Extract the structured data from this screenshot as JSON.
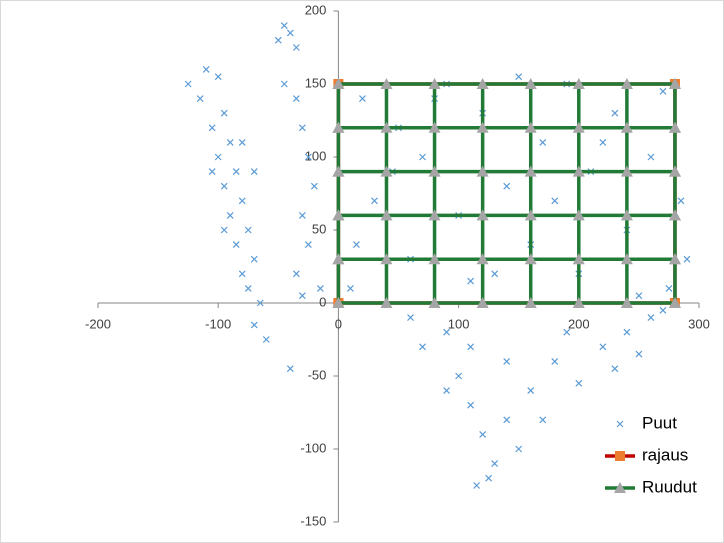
{
  "chart_data": {
    "type": "scatter",
    "xlim": [
      -200,
      300
    ],
    "xticks": [
      -200,
      -100,
      0,
      100,
      200,
      300
    ],
    "ylim": [
      -150,
      200
    ],
    "yticks": [
      -150,
      -100,
      -50,
      0,
      50,
      100,
      150,
      200
    ],
    "legend": "bottom-right",
    "series": [
      {
        "name": "Puut",
        "type": "scatter",
        "color": "#5b9bd5",
        "marker": "x",
        "x": [
          -125,
          -115,
          -110,
          -100,
          -95,
          -105,
          -90,
          -100,
          -85,
          -95,
          -80,
          -90,
          -75,
          -85,
          -70,
          -80,
          -75,
          -65,
          -70,
          -60,
          -95,
          -105,
          -70,
          -80,
          -50,
          -40,
          -35,
          -45,
          -45,
          -35,
          -30,
          -25,
          -20,
          -30,
          -25,
          -35,
          -30,
          -15,
          -40,
          10,
          20,
          30,
          50,
          60,
          70,
          90,
          100,
          110,
          120,
          140,
          150,
          160,
          170,
          190,
          200,
          210,
          230,
          240,
          250,
          260,
          270,
          285,
          290,
          15,
          45,
          80,
          130,
          180,
          220,
          275,
          60,
          70,
          90,
          100,
          110,
          120,
          130,
          115,
          125,
          140,
          150,
          160,
          180,
          200,
          220,
          240,
          260,
          270,
          190,
          170,
          90,
          140,
          110,
          230,
          250
        ],
        "y": [
          150,
          140,
          160,
          155,
          130,
          120,
          110,
          100,
          90,
          80,
          70,
          60,
          50,
          40,
          30,
          20,
          10,
          0,
          -15,
          -25,
          50,
          90,
          90,
          110,
          180,
          185,
          175,
          190,
          150,
          140,
          120,
          100,
          80,
          60,
          40,
          20,
          5,
          10,
          -45,
          10,
          140,
          70,
          120,
          30,
          100,
          150,
          60,
          15,
          130,
          80,
          155,
          40,
          110,
          150,
          20,
          90,
          130,
          50,
          5,
          100,
          145,
          70,
          30,
          40,
          90,
          140,
          20,
          70,
          110,
          10,
          -10,
          -30,
          -20,
          -50,
          -70,
          -90,
          -110,
          -125,
          -120,
          -80,
          -100,
          -60,
          -40,
          -55,
          -30,
          -20,
          -10,
          -5,
          -20,
          -80,
          -60,
          -40,
          -30,
          -45,
          -35
        ]
      },
      {
        "name": "rajaus",
        "type": "line",
        "color": "#c00000",
        "marker": "square",
        "marker_color": "#ed7d31",
        "x": [
          0,
          280,
          280,
          0,
          0
        ],
        "y": [
          0,
          0,
          150,
          150,
          0
        ]
      },
      {
        "name": "Ruudut",
        "type": "line",
        "color": "#217a35",
        "marker": "triangle",
        "marker_color": "#a5a5a5",
        "x": [
          0,
          0,
          0,
          0,
          0,
          0,
          null,
          40,
          40,
          40,
          40,
          40,
          40,
          null,
          80,
          80,
          80,
          80,
          80,
          80,
          null,
          120,
          120,
          120,
          120,
          120,
          120,
          null,
          160,
          160,
          160,
          160,
          160,
          160,
          null,
          200,
          200,
          200,
          200,
          200,
          200,
          null,
          240,
          240,
          240,
          240,
          240,
          240,
          null,
          280,
          280,
          280,
          280,
          280,
          280,
          null,
          0,
          280,
          null,
          0,
          280,
          null,
          0,
          280,
          null,
          0,
          280,
          null,
          0,
          280,
          null,
          0,
          280
        ],
        "y": [
          0,
          30,
          60,
          90,
          120,
          150,
          null,
          0,
          30,
          60,
          90,
          120,
          150,
          null,
          0,
          30,
          60,
          90,
          120,
          150,
          null,
          0,
          30,
          60,
          90,
          120,
          150,
          null,
          0,
          30,
          60,
          90,
          120,
          150,
          null,
          0,
          30,
          60,
          90,
          120,
          150,
          null,
          0,
          30,
          60,
          90,
          120,
          150,
          null,
          0,
          30,
          60,
          90,
          120,
          150,
          null,
          0,
          0,
          null,
          30,
          30,
          null,
          60,
          60,
          null,
          90,
          90,
          null,
          120,
          120,
          null,
          150,
          150
        ]
      }
    ]
  }
}
